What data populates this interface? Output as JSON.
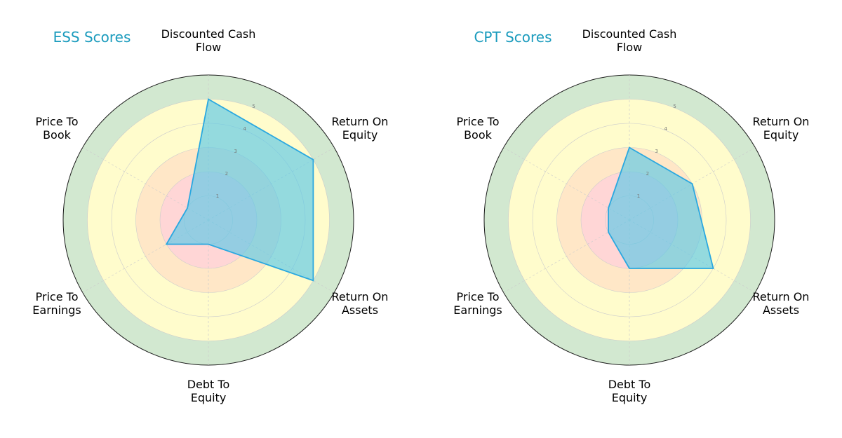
{
  "chart_data": [
    {
      "type": "radar",
      "title": "ESS Scores",
      "title_color": "#1a9bbd",
      "axes": [
        [
          "Discounted Cash",
          "Flow"
        ],
        [
          "Return On",
          "Equity"
        ],
        [
          "Return On",
          "Assets"
        ],
        [
          "Debt To",
          "Equity"
        ],
        [
          "Price To",
          "Earnings"
        ],
        [
          "Price To",
          "Book"
        ]
      ],
      "values": [
        5,
        5,
        5,
        1,
        2,
        1
      ],
      "rlim": [
        0,
        5
      ],
      "ticks": [
        "1",
        "2",
        "3",
        "4",
        "5"
      ],
      "series_fill": "#5bc8e8",
      "series_stroke": "#2aa8e0"
    },
    {
      "type": "radar",
      "title": "CPT Scores",
      "title_color": "#1a9bbd",
      "axes": [
        [
          "Discounted Cash",
          "Flow"
        ],
        [
          "Return On",
          "Equity"
        ],
        [
          "Return On",
          "Assets"
        ],
        [
          "Debt To",
          "Equity"
        ],
        [
          "Price To",
          "Earnings"
        ],
        [
          "Price To",
          "Book"
        ]
      ],
      "values": [
        3,
        3,
        4,
        2,
        1,
        1
      ],
      "rlim": [
        0,
        5
      ],
      "ticks": [
        "1",
        "2",
        "3",
        "4",
        "5"
      ],
      "series_fill": "#5bc8e8",
      "series_stroke": "#2aa8e0"
    }
  ],
  "band_colors": [
    "#ffd6d6",
    "#ffd6d6",
    "#ffe7c7",
    "#fffccc",
    "#fffccc",
    "#d2e8d0"
  ]
}
